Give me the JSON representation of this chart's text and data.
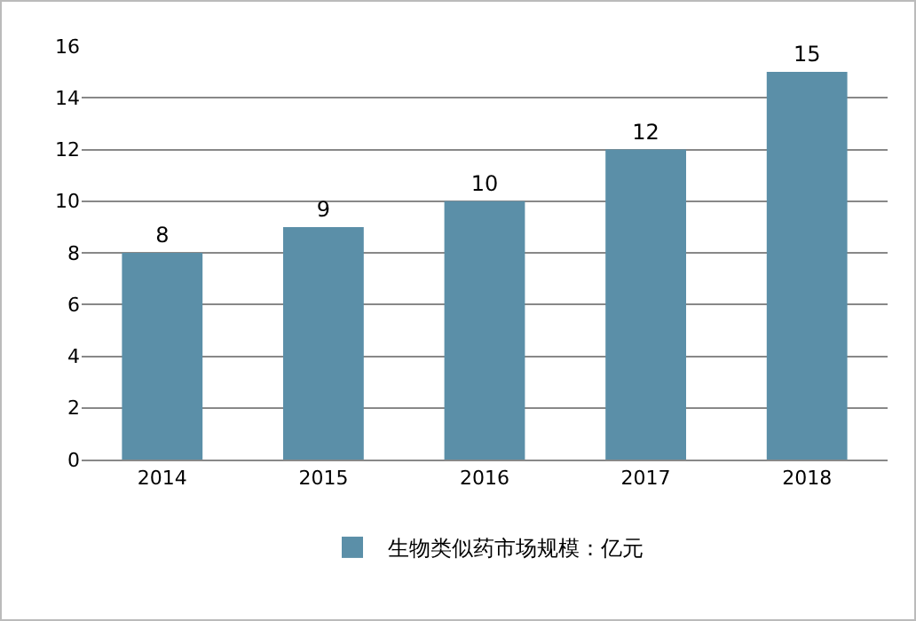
{
  "chart_data": {
    "type": "bar",
    "categories": [
      "2014",
      "2015",
      "2016",
      "2017",
      "2018"
    ],
    "series": [
      {
        "name": "生物类似药市场规模：亿元",
        "color": "#5b8fa8",
        "values": [
          8,
          9,
          10,
          12,
          15
        ]
      }
    ],
    "ylim": [
      0,
      16
    ],
    "yticks": [
      0,
      2,
      4,
      6,
      8,
      10,
      12,
      14,
      16
    ],
    "grid": "y",
    "legend": "bottom",
    "data_labels": true
  }
}
